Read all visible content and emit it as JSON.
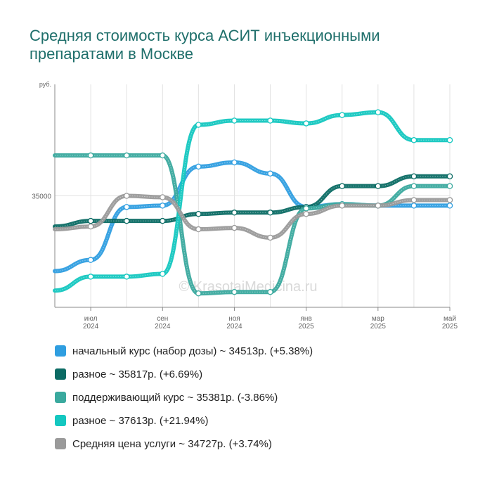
{
  "title": "Средняя стоимость курса АСИТ инъекционными препаратами в Москве",
  "watermark": "© KrasotaiMedicina.ru",
  "chart_data": {
    "type": "line",
    "y_unit": "руб.",
    "y_ticks": [
      35000
    ],
    "ylim": [
      31000,
      39000
    ],
    "x_tick_labels": [
      {
        "month": "июл",
        "year": "2024"
      },
      {
        "month": "сен",
        "year": "2024"
      },
      {
        "month": "ноя",
        "year": "2024"
      },
      {
        "month": "янв",
        "year": "2025"
      },
      {
        "month": "мар",
        "year": "2025"
      },
      {
        "month": "май",
        "year": "2025"
      }
    ],
    "x": [
      "2024-06",
      "2024-07",
      "2024-08",
      "2024-09",
      "2024-10",
      "2024-11",
      "2024-12",
      "2025-01",
      "2025-02",
      "2025-03",
      "2025-04",
      "2025-05"
    ],
    "grid": true,
    "legend_position": "bottom",
    "series": [
      {
        "name": "начальный курс (набор дозы)",
        "legend": "начальный курс (набор дозы) ~ 34513р. (+5.38%)",
        "color": "#2f9ee0",
        "values": [
          32300,
          32700,
          34600,
          34650,
          36050,
          36200,
          35800,
          34600,
          34700,
          34650,
          34650,
          34650
        ]
      },
      {
        "name": "разное",
        "legend": "разное ~ 35817р. (+6.69%)",
        "color": "#0b6b64",
        "values": [
          33900,
          34100,
          34100,
          34100,
          34350,
          34400,
          34400,
          34600,
          35350,
          35350,
          35700,
          35700
        ]
      },
      {
        "name": "поддерживающий курс",
        "legend": "поддерживающий курс ~ 35381р. (-3.86%)",
        "color": "#3aa99e",
        "values": [
          36450,
          36450,
          36450,
          36450,
          31500,
          31550,
          31550,
          34550,
          34700,
          34650,
          35350,
          35350
        ]
      },
      {
        "name": "разное",
        "legend": "разное ~ 37613р. (+21.94%)",
        "color": "#14c7c0",
        "values": [
          31600,
          32100,
          32100,
          32200,
          37550,
          37700,
          37700,
          37600,
          37900,
          38000,
          37000,
          37000
        ]
      },
      {
        "name": "Средняя цена услуги",
        "legend": "Средняя цена услуги ~ 34727р. (+3.74%)",
        "color": "#9a9a9a",
        "values": [
          33800,
          33900,
          35000,
          34950,
          33800,
          33850,
          33500,
          34350,
          34650,
          34650,
          34850,
          34850
        ]
      }
    ]
  }
}
